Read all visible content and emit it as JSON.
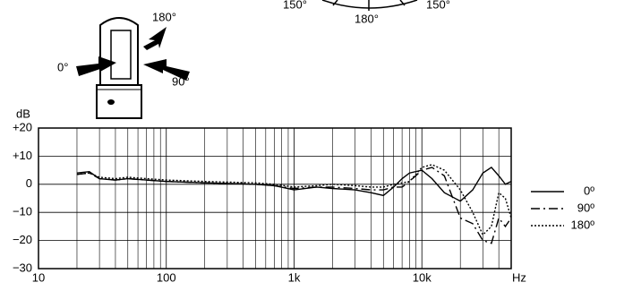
{
  "chart_data": {
    "type": "line",
    "annotations": [
      "180°",
      "0°",
      "90°",
      "150°",
      "180°",
      "150°"
    ],
    "ylabel": "dB",
    "xlabel": "Hz",
    "xscale": "log",
    "grid": true,
    "minor_grid": true,
    "xlim": [
      10,
      50000
    ],
    "xticks": [
      10,
      100,
      {
        "value": 1000,
        "label": "1k"
      },
      {
        "value": 10000,
        "label": "10k"
      }
    ],
    "ylim": [
      -30,
      20
    ],
    "yticks": [
      {
        "value": -30,
        "label": "−30"
      },
      {
        "value": -20,
        "label": "−20"
      },
      {
        "value": -10,
        "label": "−10"
      },
      0,
      {
        "value": 10,
        "label": "+10"
      },
      {
        "value": 20,
        "label": "+20"
      }
    ],
    "legend": "right",
    "x": [
      20,
      25,
      30,
      40,
      50,
      70,
      100,
      200,
      500,
      700,
      1000,
      1500,
      2000,
      3000,
      4000,
      5000,
      6000,
      7000,
      8000,
      10000,
      12000,
      15000,
      20000,
      25000,
      30000,
      35000,
      40000,
      45000,
      50000
    ],
    "series": [
      {
        "name": "0º",
        "color": "#000000",
        "dash": "solid",
        "values": [
          4,
          4.5,
          2,
          1.5,
          2,
          1.5,
          1,
          0.5,
          0,
          -0.5,
          -2,
          -1,
          -1.5,
          -2,
          -3,
          -4,
          -1,
          2,
          4,
          5,
          2,
          -3,
          -6,
          -2,
          4,
          6,
          3,
          0,
          1
        ]
      },
      {
        "name": "90º",
        "color": "#000000",
        "dash": "dashdot",
        "values": [
          3.5,
          4,
          2,
          1.5,
          2,
          1.5,
          1,
          0.5,
          0,
          -0.5,
          -1.5,
          -1,
          -1,
          -1.5,
          -2,
          -2,
          -1,
          -1,
          1,
          5,
          6,
          3,
          -12,
          -14,
          -20,
          -21,
          -12,
          -15,
          -12
        ]
      },
      {
        "name": "180º",
        "color": "#000000",
        "dash": "dotted",
        "values": [
          3.5,
          4,
          2.5,
          2,
          2.5,
          2,
          1.5,
          1,
          0.5,
          0,
          -1,
          -0.5,
          0,
          -0.5,
          -1,
          -1,
          0,
          0.5,
          1,
          6,
          7,
          5,
          -2,
          -10,
          -18,
          -15,
          -3,
          -5,
          -12
        ]
      }
    ]
  }
}
